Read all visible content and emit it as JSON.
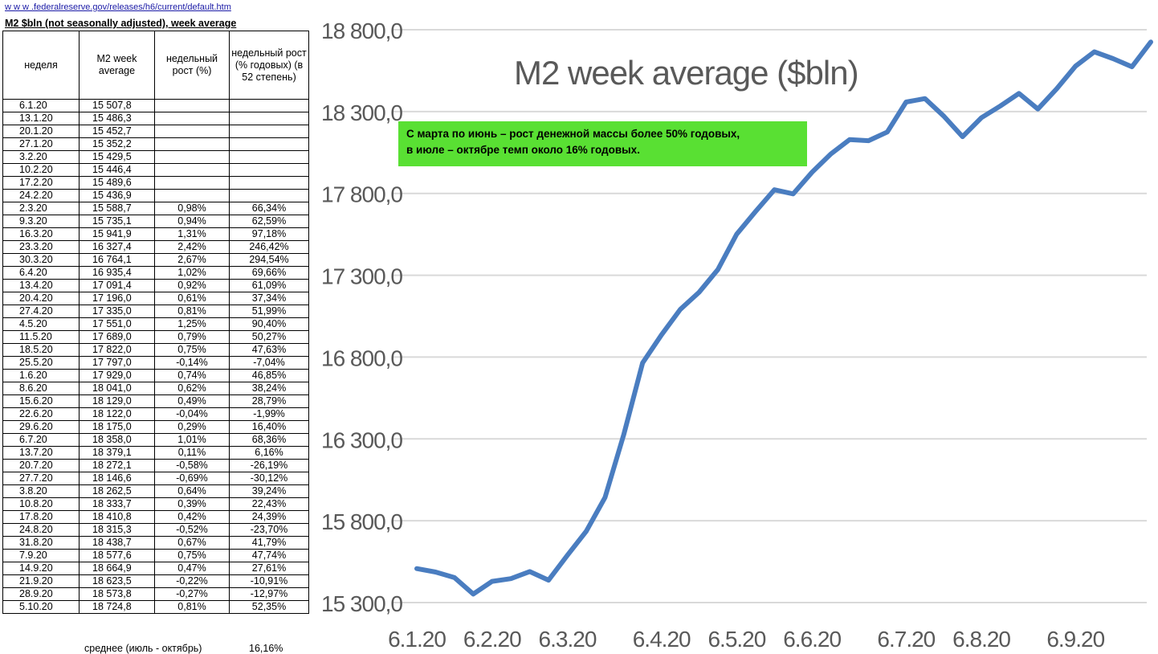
{
  "sheet": {
    "url": "w w w .federalreserve.gov/releases/h6/current/default.htm",
    "heading": "M2 $bln (not seasonally adjusted), week average",
    "columns": [
      "неделя",
      "M2 week average",
      "недельный рост (%)",
      "недельный рост (% годовых) (в 52 степень)"
    ],
    "rows": [
      [
        "6.1.20",
        "15 507,8",
        "",
        ""
      ],
      [
        "13.1.20",
        "15 486,3",
        "",
        ""
      ],
      [
        "20.1.20",
        "15 452,7",
        "",
        ""
      ],
      [
        "27.1.20",
        "15 352,2",
        "",
        ""
      ],
      [
        "3.2.20",
        "15 429,5",
        "",
        ""
      ],
      [
        "10.2.20",
        "15 446,4",
        "",
        ""
      ],
      [
        "17.2.20",
        "15 489,6",
        "",
        ""
      ],
      [
        "24.2.20",
        "15 436,9",
        "",
        ""
      ],
      [
        "2.3.20",
        "15 588,7",
        "0,98%",
        "66,34%"
      ],
      [
        "9.3.20",
        "15 735,1",
        "0,94%",
        "62,59%"
      ],
      [
        "16.3.20",
        "15 941,9",
        "1,31%",
        "97,18%"
      ],
      [
        "23.3.20",
        "16 327,4",
        "2,42%",
        "246,42%"
      ],
      [
        "30.3.20",
        "16 764,1",
        "2,67%",
        "294,54%"
      ],
      [
        "6.4.20",
        "16 935,4",
        "1,02%",
        "69,66%"
      ],
      [
        "13.4.20",
        "17 091,4",
        "0,92%",
        "61,09%"
      ],
      [
        "20.4.20",
        "17 196,0",
        "0,61%",
        "37,34%"
      ],
      [
        "27.4.20",
        "17 335,0",
        "0,81%",
        "51,99%"
      ],
      [
        "4.5.20",
        "17 551,0",
        "1,25%",
        "90,40%"
      ],
      [
        "11.5.20",
        "17 689,0",
        "0,79%",
        "50,27%"
      ],
      [
        "18.5.20",
        "17 822,0",
        "0,75%",
        "47,63%"
      ],
      [
        "25.5.20",
        "17 797,0",
        "-0,14%",
        "-7,04%"
      ],
      [
        "1.6.20",
        "17 929,0",
        "0,74%",
        "46,85%"
      ],
      [
        "8.6.20",
        "18 041,0",
        "0,62%",
        "38,24%"
      ],
      [
        "15.6.20",
        "18 129,0",
        "0,49%",
        "28,79%"
      ],
      [
        "22.6.20",
        "18 122,0",
        "-0,04%",
        "-1,99%"
      ],
      [
        "29.6.20",
        "18 175,0",
        "0,29%",
        "16,40%"
      ],
      [
        "6.7.20",
        "18 358,0",
        "1,01%",
        "68,36%"
      ],
      [
        "13.7.20",
        "18 379,1",
        "0,11%",
        "6,16%"
      ],
      [
        "20.7.20",
        "18 272,1",
        "-0,58%",
        "-26,19%"
      ],
      [
        "27.7.20",
        "18 146,6",
        "-0,69%",
        "-30,12%"
      ],
      [
        "3.8.20",
        "18 262,5",
        "0,64%",
        "39,24%"
      ],
      [
        "10.8.20",
        "18 333,7",
        "0,39%",
        "22,43%"
      ],
      [
        "17.8.20",
        "18 410,8",
        "0,42%",
        "24,39%"
      ],
      [
        "24.8.20",
        "18 315,3",
        "-0,52%",
        "-23,70%"
      ],
      [
        "31.8.20",
        "18 438,7",
        "0,67%",
        "41,79%"
      ],
      [
        "7.9.20",
        "18 577,6",
        "0,75%",
        "47,74%"
      ],
      [
        "14.9.20",
        "18 664,9",
        "0,47%",
        "27,61%"
      ],
      [
        "21.9.20",
        "18 623,5",
        "-0,22%",
        "-10,91%"
      ],
      [
        "28.9.20",
        "18 573,8",
        "-0,27%",
        "-12,97%"
      ],
      [
        "5.10.20",
        "18 724,8",
        "0,81%",
        "52,35%"
      ]
    ],
    "footer_label": "среднее (июль - октябрь)",
    "footer_value": "16,16%"
  },
  "note": {
    "line1": "С марта по июнь – рост денежной массы более 50% годовых,",
    "line2": "в июле – октябре темп около 16% годовых."
  },
  "chart_data": {
    "type": "line",
    "title": "M2 week average ($bln)",
    "xlabel": "",
    "ylabel": "",
    "ylim": [
      15300,
      18800
    ],
    "yticks": [
      15300,
      15800,
      16300,
      16800,
      17300,
      17800,
      18300,
      18800
    ],
    "ytick_labels": [
      "15 300,0",
      "15 800,0",
      "16 300,0",
      "16 800,0",
      "17 300,0",
      "17 800,0",
      "18 300,0",
      "18 800,0"
    ],
    "xtick_labels": [
      "6.1.20",
      "6.2.20",
      "6.3.20",
      "6.4.20",
      "6.5.20",
      "6.6.20",
      "6.7.20",
      "6.8.20",
      "6.9.20"
    ],
    "xtick_index": [
      0,
      4,
      8,
      13,
      17,
      21,
      26,
      30,
      35
    ],
    "grid": true,
    "line_color": "#4a7dc0",
    "series": [
      {
        "name": "M2 week average",
        "values": [
          15507.8,
          15486.3,
          15452.7,
          15352.2,
          15429.5,
          15446.4,
          15489.6,
          15436.9,
          15588.7,
          15735.1,
          15941.9,
          16327.4,
          16764.1,
          16935.4,
          17091.4,
          17196.0,
          17335.0,
          17551.0,
          17689.0,
          17822.0,
          17797.0,
          17929.0,
          18041.0,
          18129.0,
          18122.0,
          18175.0,
          18358.0,
          18379.1,
          18272.1,
          18146.6,
          18262.5,
          18333.7,
          18410.8,
          18315.3,
          18438.7,
          18577.6,
          18664.9,
          18623.5,
          18573.8,
          18724.8
        ]
      }
    ]
  }
}
